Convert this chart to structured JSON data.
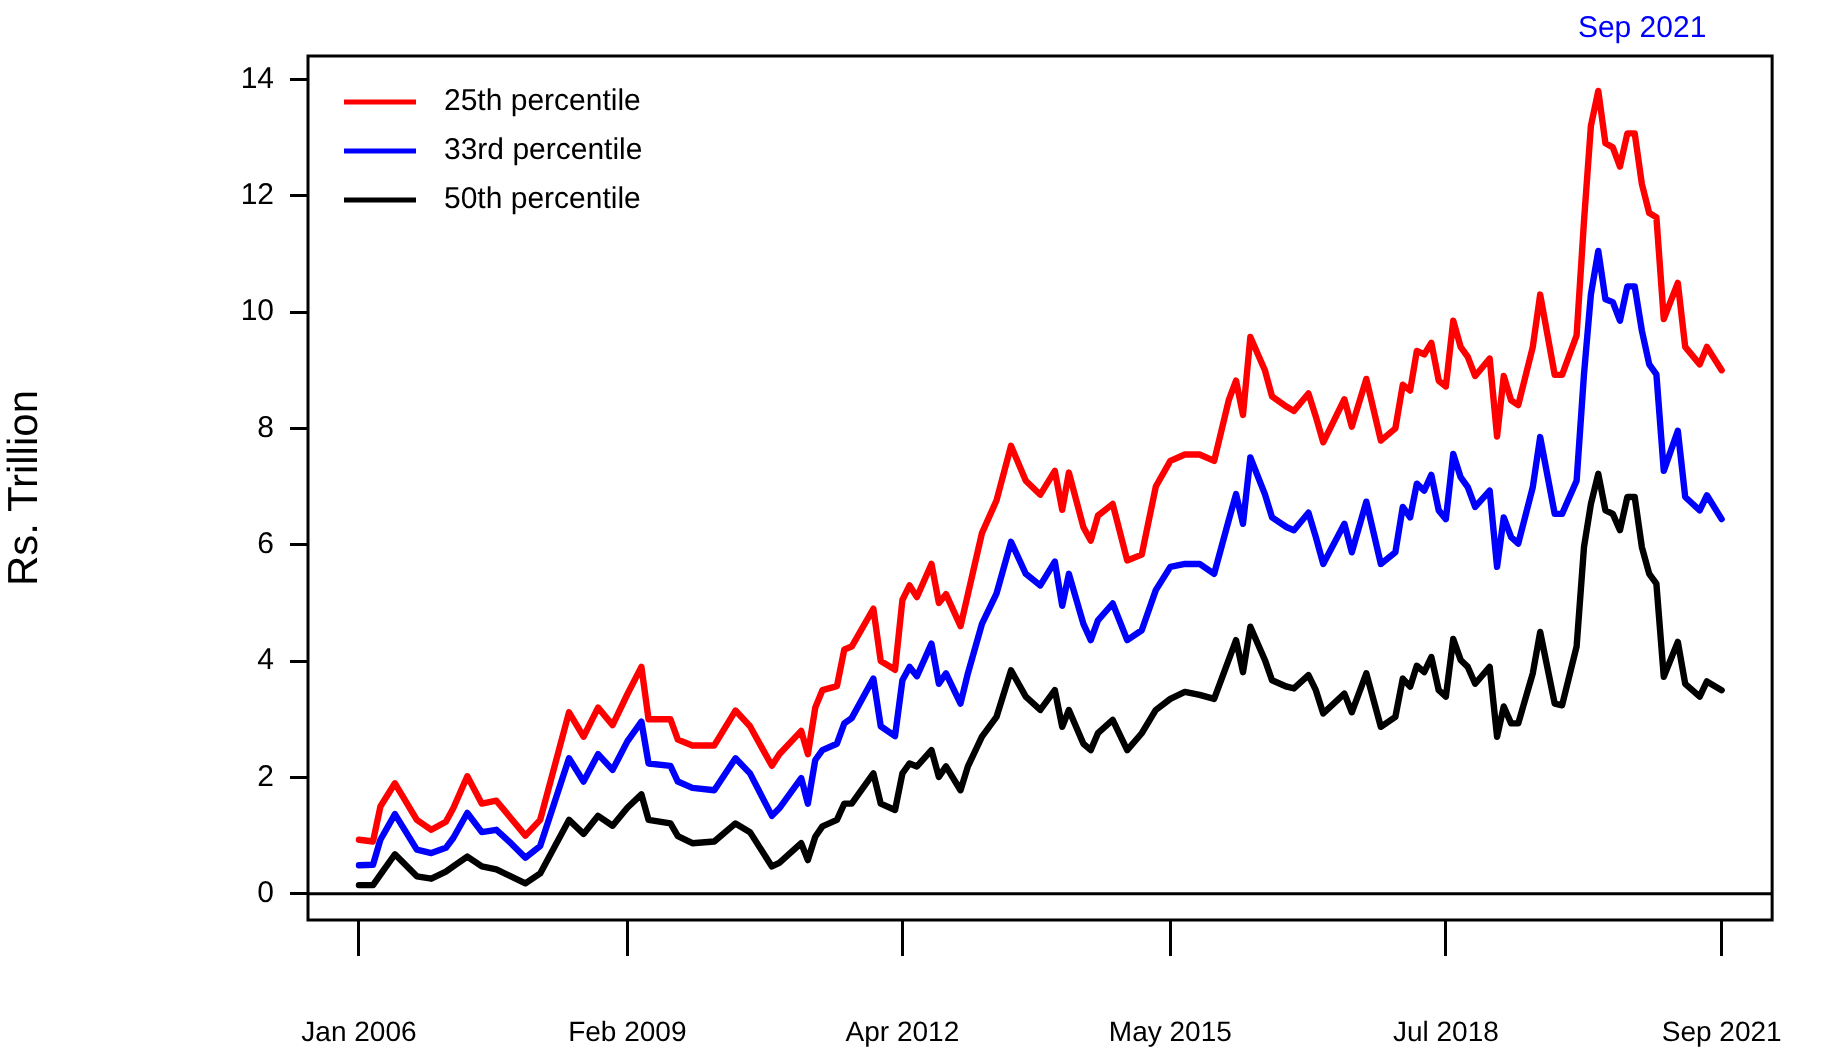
{
  "chart_data": {
    "type": "line",
    "ylabel": "Rs. Trillion",
    "legend": "top left",
    "grid": false,
    "marker": "none",
    "line_style": "solid",
    "x": [
      "2006-01",
      "2006-03",
      "2006-04",
      "2006-06",
      "2006-09",
      "2006-11",
      "2007-01",
      "2007-02",
      "2007-04",
      "2007-06",
      "2007-08",
      "2007-10",
      "2007-12",
      "2008-02",
      "2008-06",
      "2008-08",
      "2008-10",
      "2008-12",
      "2009-02",
      "2009-04",
      "2009-05",
      "2009-08",
      "2009-09",
      "2009-11",
      "2010-02",
      "2010-05",
      "2010-07",
      "2010-10",
      "2010-11",
      "2011-02",
      "2011-03",
      "2011-04",
      "2011-05",
      "2011-07",
      "2011-08",
      "2011-09",
      "2011-12",
      "2012-01",
      "2012-03",
      "2012-04",
      "2012-05",
      "2012-06",
      "2012-08",
      "2012-09",
      "2012-10",
      "2012-12",
      "2013-01",
      "2013-03",
      "2013-05",
      "2013-07",
      "2013-09",
      "2013-11",
      "2014-01",
      "2014-02",
      "2014-03",
      "2014-05",
      "2014-06",
      "2014-07",
      "2014-09",
      "2014-11",
      "2015-01",
      "2015-03",
      "2015-05",
      "2015-07",
      "2015-09",
      "2015-11",
      "2016-01",
      "2016-02",
      "2016-03",
      "2016-04",
      "2016-06",
      "2016-07",
      "2016-09",
      "2016-10",
      "2016-12",
      "2017-01",
      "2017-02",
      "2017-05",
      "2017-06",
      "2017-08",
      "2017-10",
      "2017-12",
      "2018-01",
      "2018-02",
      "2018-03",
      "2018-04",
      "2018-05",
      "2018-06",
      "2018-07",
      "2018-08",
      "2018-09",
      "2018-10",
      "2018-11",
      "2019-01",
      "2019-02",
      "2019-03",
      "2019-04",
      "2019-05",
      "2019-07",
      "2019-08",
      "2019-10",
      "2019-11",
      "2020-01",
      "2020-02",
      "2020-03",
      "2020-04",
      "2020-05",
      "2020-06",
      "2020-07",
      "2020-08",
      "2020-09",
      "2020-10",
      "2020-11",
      "2020-12",
      "2021-01",
      "2021-03",
      "2021-04",
      "2021-06",
      "2021-07",
      "2021-09"
    ],
    "series": [
      {
        "name": "25th percentile",
        "color": "#ff0000",
        "values": [
          0.93,
          0.9,
          1.5,
          1.9,
          1.27,
          1.1,
          1.24,
          1.47,
          2.02,
          1.55,
          1.6,
          1.3,
          1.0,
          1.27,
          3.12,
          2.7,
          3.2,
          2.9,
          3.43,
          3.9,
          3.0,
          3.0,
          2.65,
          2.55,
          2.55,
          3.15,
          2.88,
          2.2,
          2.4,
          2.8,
          2.4,
          3.2,
          3.5,
          3.57,
          4.2,
          4.25,
          4.9,
          4.0,
          3.85,
          5.05,
          5.3,
          5.1,
          5.67,
          5.0,
          5.15,
          4.6,
          5.15,
          6.2,
          6.76,
          7.7,
          7.1,
          6.86,
          7.27,
          6.6,
          7.24,
          6.3,
          6.07,
          6.5,
          6.7,
          5.73,
          5.83,
          7.0,
          7.44,
          7.55,
          7.55,
          7.44,
          8.48,
          8.82,
          8.23,
          9.57,
          9.0,
          8.55,
          8.37,
          8.3,
          8.6,
          8.2,
          7.76,
          8.5,
          8.03,
          8.85,
          7.79,
          8.0,
          8.75,
          8.65,
          9.33,
          9.27,
          9.47,
          8.82,
          8.72,
          9.85,
          9.4,
          9.23,
          8.9,
          9.2,
          7.86,
          8.9,
          8.48,
          8.4,
          9.4,
          10.3,
          8.92,
          8.92,
          9.6,
          11.56,
          13.2,
          13.8,
          12.9,
          12.83,
          12.5,
          13.07,
          13.07,
          12.2,
          11.7,
          11.63,
          9.88,
          10.5,
          9.4,
          9.1,
          9.4,
          9.0
        ]
      },
      {
        "name": "33rd percentile",
        "color": "#0000ff",
        "values": [
          0.49,
          0.5,
          0.93,
          1.37,
          0.76,
          0.7,
          0.79,
          0.96,
          1.39,
          1.06,
          1.1,
          0.87,
          0.62,
          0.82,
          2.33,
          1.93,
          2.4,
          2.13,
          2.62,
          2.96,
          2.24,
          2.2,
          1.93,
          1.82,
          1.78,
          2.33,
          2.07,
          1.34,
          1.47,
          1.99,
          1.55,
          2.3,
          2.47,
          2.58,
          2.93,
          3.02,
          3.7,
          2.88,
          2.71,
          3.67,
          3.9,
          3.74,
          4.3,
          3.61,
          3.79,
          3.27,
          3.79,
          4.64,
          5.16,
          6.05,
          5.5,
          5.3,
          5.71,
          4.95,
          5.5,
          4.64,
          4.36,
          4.7,
          4.99,
          4.36,
          4.53,
          5.22,
          5.62,
          5.67,
          5.67,
          5.5,
          6.42,
          6.87,
          6.36,
          7.5,
          6.87,
          6.47,
          6.3,
          6.25,
          6.55,
          6.13,
          5.67,
          6.36,
          5.87,
          6.74,
          5.67,
          5.87,
          6.65,
          6.47,
          7.05,
          6.93,
          7.2,
          6.59,
          6.44,
          7.56,
          7.16,
          6.99,
          6.65,
          6.93,
          5.62,
          6.47,
          6.13,
          6.02,
          6.99,
          7.85,
          6.53,
          6.53,
          7.1,
          8.93,
          10.3,
          11.05,
          10.22,
          10.17,
          9.85,
          10.44,
          10.44,
          9.68,
          9.1,
          8.93,
          7.27,
          7.96,
          6.82,
          6.59,
          6.85,
          6.44
        ]
      },
      {
        "name": "50th percentile",
        "color": "#000000",
        "values": [
          0.15,
          0.15,
          0.33,
          0.68,
          0.3,
          0.26,
          0.38,
          0.47,
          0.64,
          0.47,
          0.42,
          0.3,
          0.18,
          0.35,
          1.27,
          1.03,
          1.34,
          1.17,
          1.48,
          1.71,
          1.27,
          1.21,
          0.99,
          0.87,
          0.9,
          1.21,
          1.06,
          0.47,
          0.53,
          0.87,
          0.58,
          0.98,
          1.16,
          1.27,
          1.55,
          1.55,
          2.07,
          1.55,
          1.44,
          2.07,
          2.24,
          2.19,
          2.47,
          2.01,
          2.19,
          1.78,
          2.19,
          2.7,
          3.04,
          3.84,
          3.39,
          3.16,
          3.5,
          2.87,
          3.16,
          2.58,
          2.47,
          2.76,
          2.99,
          2.47,
          2.76,
          3.16,
          3.35,
          3.47,
          3.42,
          3.35,
          4.02,
          4.36,
          3.81,
          4.59,
          4.02,
          3.67,
          3.56,
          3.53,
          3.76,
          3.5,
          3.1,
          3.44,
          3.12,
          3.79,
          2.87,
          3.04,
          3.7,
          3.56,
          3.92,
          3.81,
          4.07,
          3.5,
          3.39,
          4.38,
          4.02,
          3.9,
          3.61,
          3.9,
          2.7,
          3.22,
          2.93,
          2.93,
          3.79,
          4.5,
          3.27,
          3.24,
          4.25,
          5.96,
          6.7,
          7.22,
          6.59,
          6.53,
          6.25,
          6.82,
          6.82,
          5.96,
          5.5,
          5.33,
          3.73,
          4.33,
          3.61,
          3.39,
          3.65,
          3.5
        ]
      }
    ],
    "xlim": [
      "2005-06",
      "2022-04"
    ],
    "xticks": [
      {
        "value": "2006-01",
        "label": "Jan 2006"
      },
      {
        "value": "2009-02",
        "label": "Feb 2009"
      },
      {
        "value": "2012-04",
        "label": "Apr 2012"
      },
      {
        "value": "2015-05",
        "label": "May 2015"
      },
      {
        "value": "2018-07",
        "label": "Jul 2018"
      },
      {
        "value": "2021-09",
        "label": "Sep 2021"
      }
    ],
    "ylim": [
      -0.45,
      14.4
    ],
    "yticks": [
      0,
      2,
      4,
      6,
      8,
      10,
      12,
      14
    ],
    "ref_lines": [
      {
        "axis": "y",
        "value": 0,
        "color": "#000000"
      }
    ],
    "annotations": [
      "Sep 2021"
    ]
  }
}
